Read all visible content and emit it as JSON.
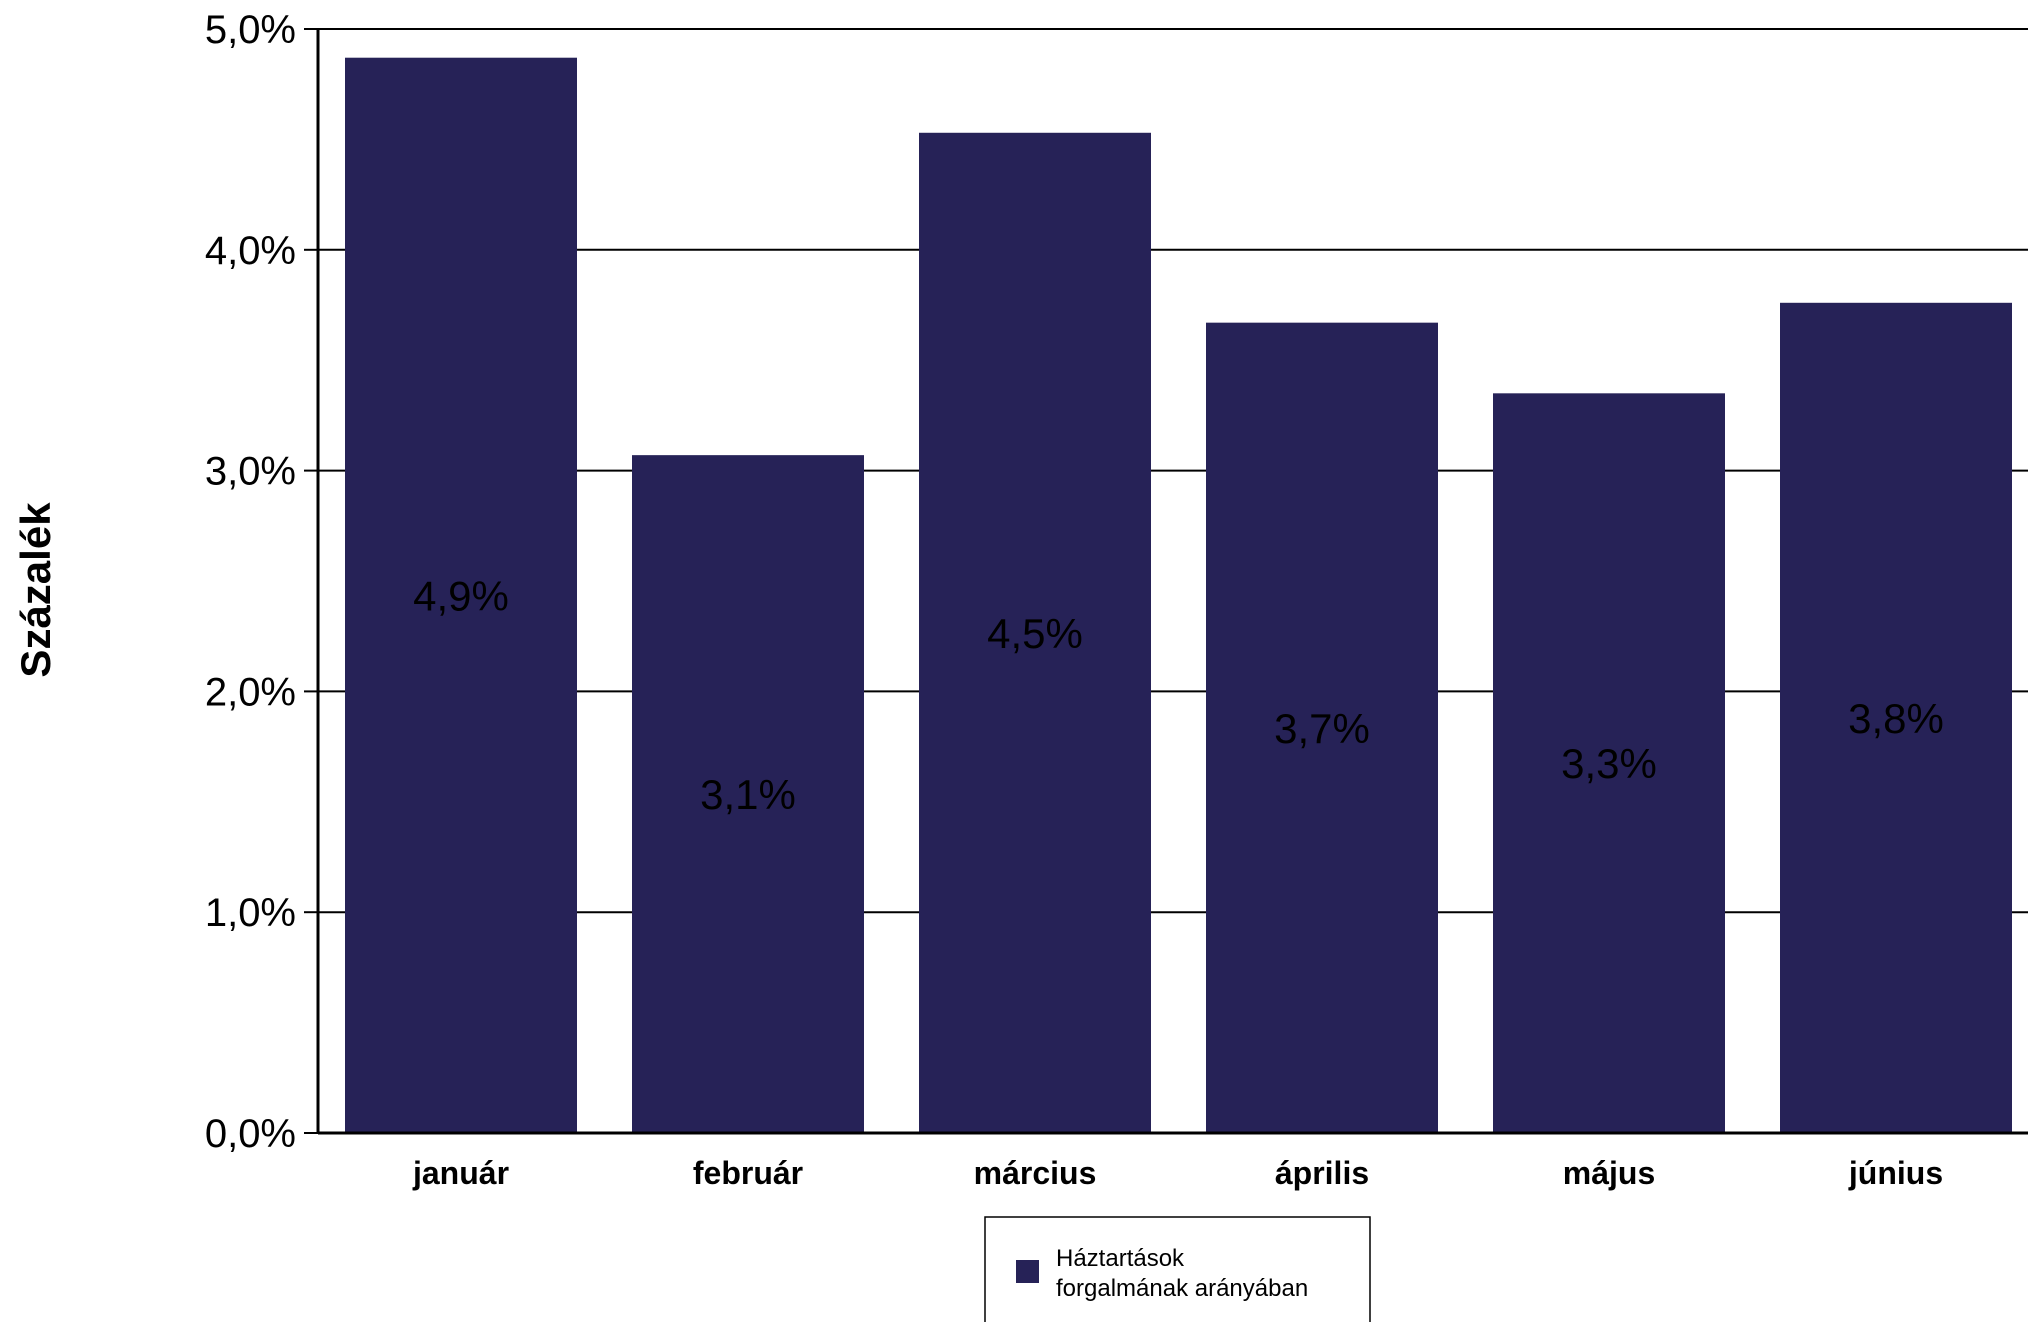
{
  "chart_data": {
    "type": "bar",
    "categories": [
      "január",
      "február",
      "március",
      "április",
      "május",
      "június"
    ],
    "series": [
      {
        "name": "Háztartások forgalmának arányában",
        "values": [
          4.87,
          3.07,
          4.53,
          3.67,
          3.35,
          3.76
        ],
        "data_labels": [
          "4,9%",
          "3,1%",
          "4,5%",
          "3,7%",
          "3,3%",
          "3,8%"
        ]
      }
    ],
    "ylabel": "Százalék",
    "ylim": [
      0,
      5
    ],
    "yticks": [
      0,
      1,
      2,
      3,
      4,
      5
    ],
    "ytick_labels": [
      "0,0%",
      "1,0%",
      "2,0%",
      "3,0%",
      "4,0%",
      "5,0%"
    ],
    "grid": true,
    "legend_position": "bottom",
    "colors": {
      "bar": "#262257",
      "grid": "#000000",
      "background": "#ffffff"
    }
  }
}
